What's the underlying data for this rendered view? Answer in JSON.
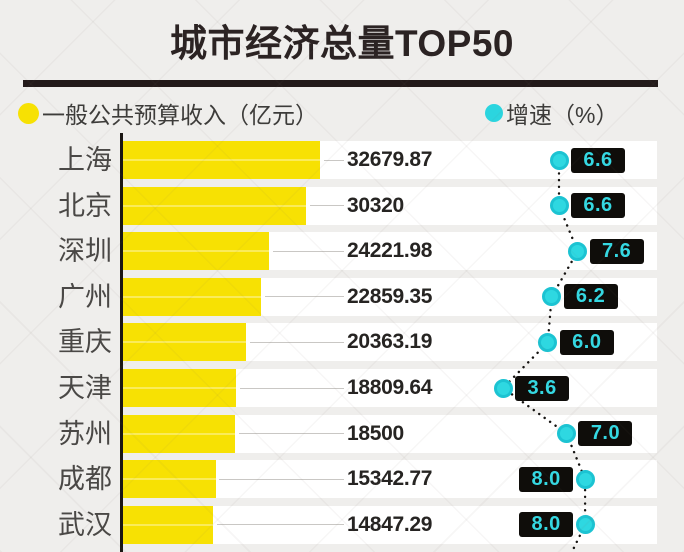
{
  "title": "城市经济总量TOP50",
  "legend": {
    "revenue_label": "一般公共预算收入（亿元）",
    "growth_label": "增速（%）"
  },
  "colors": {
    "bar_yellow": "#f7e103",
    "growth_cyan": "#2bd5df",
    "badge_bg": "#0f0d0a",
    "badge_text": "#35d8e2",
    "page_bg": "#efeeec",
    "row_bg": "#ffffff",
    "divider": "#231a1a"
  },
  "chart_data": {
    "type": "bar",
    "orientation": "horizontal",
    "title": "城市经济总量TOP50",
    "categories": [
      "上海",
      "北京",
      "深圳",
      "广州",
      "重庆",
      "天津",
      "苏州",
      "成都",
      "武汉"
    ],
    "series": [
      {
        "name": "一般公共预算收入（亿元）",
        "values": [
          32679.87,
          30320,
          24221.98,
          22859.35,
          20363.19,
          18809.64,
          18500,
          15342.77,
          14847.29
        ]
      },
      {
        "name": "增速（%）",
        "values": [
          6.6,
          6.6,
          7.6,
          6.2,
          6.0,
          3.6,
          7.0,
          8.0,
          8.0
        ]
      }
    ],
    "value_labels": [
      "32679.87",
      "30320",
      "24221.98",
      "22859.35",
      "20363.19",
      "18809.64",
      "18500",
      "15342.77",
      "14847.29"
    ],
    "growth_labels": [
      "6.6",
      "6.6",
      "7.6",
      "6.2",
      "6.0",
      "3.6",
      "7.0",
      "8.0",
      "8.0"
    ],
    "xlim_revenue": [
      0,
      32679.87
    ],
    "grid": "per-row leader lines",
    "legend_position": "top",
    "note": "list truncated at bottom edge of image"
  }
}
